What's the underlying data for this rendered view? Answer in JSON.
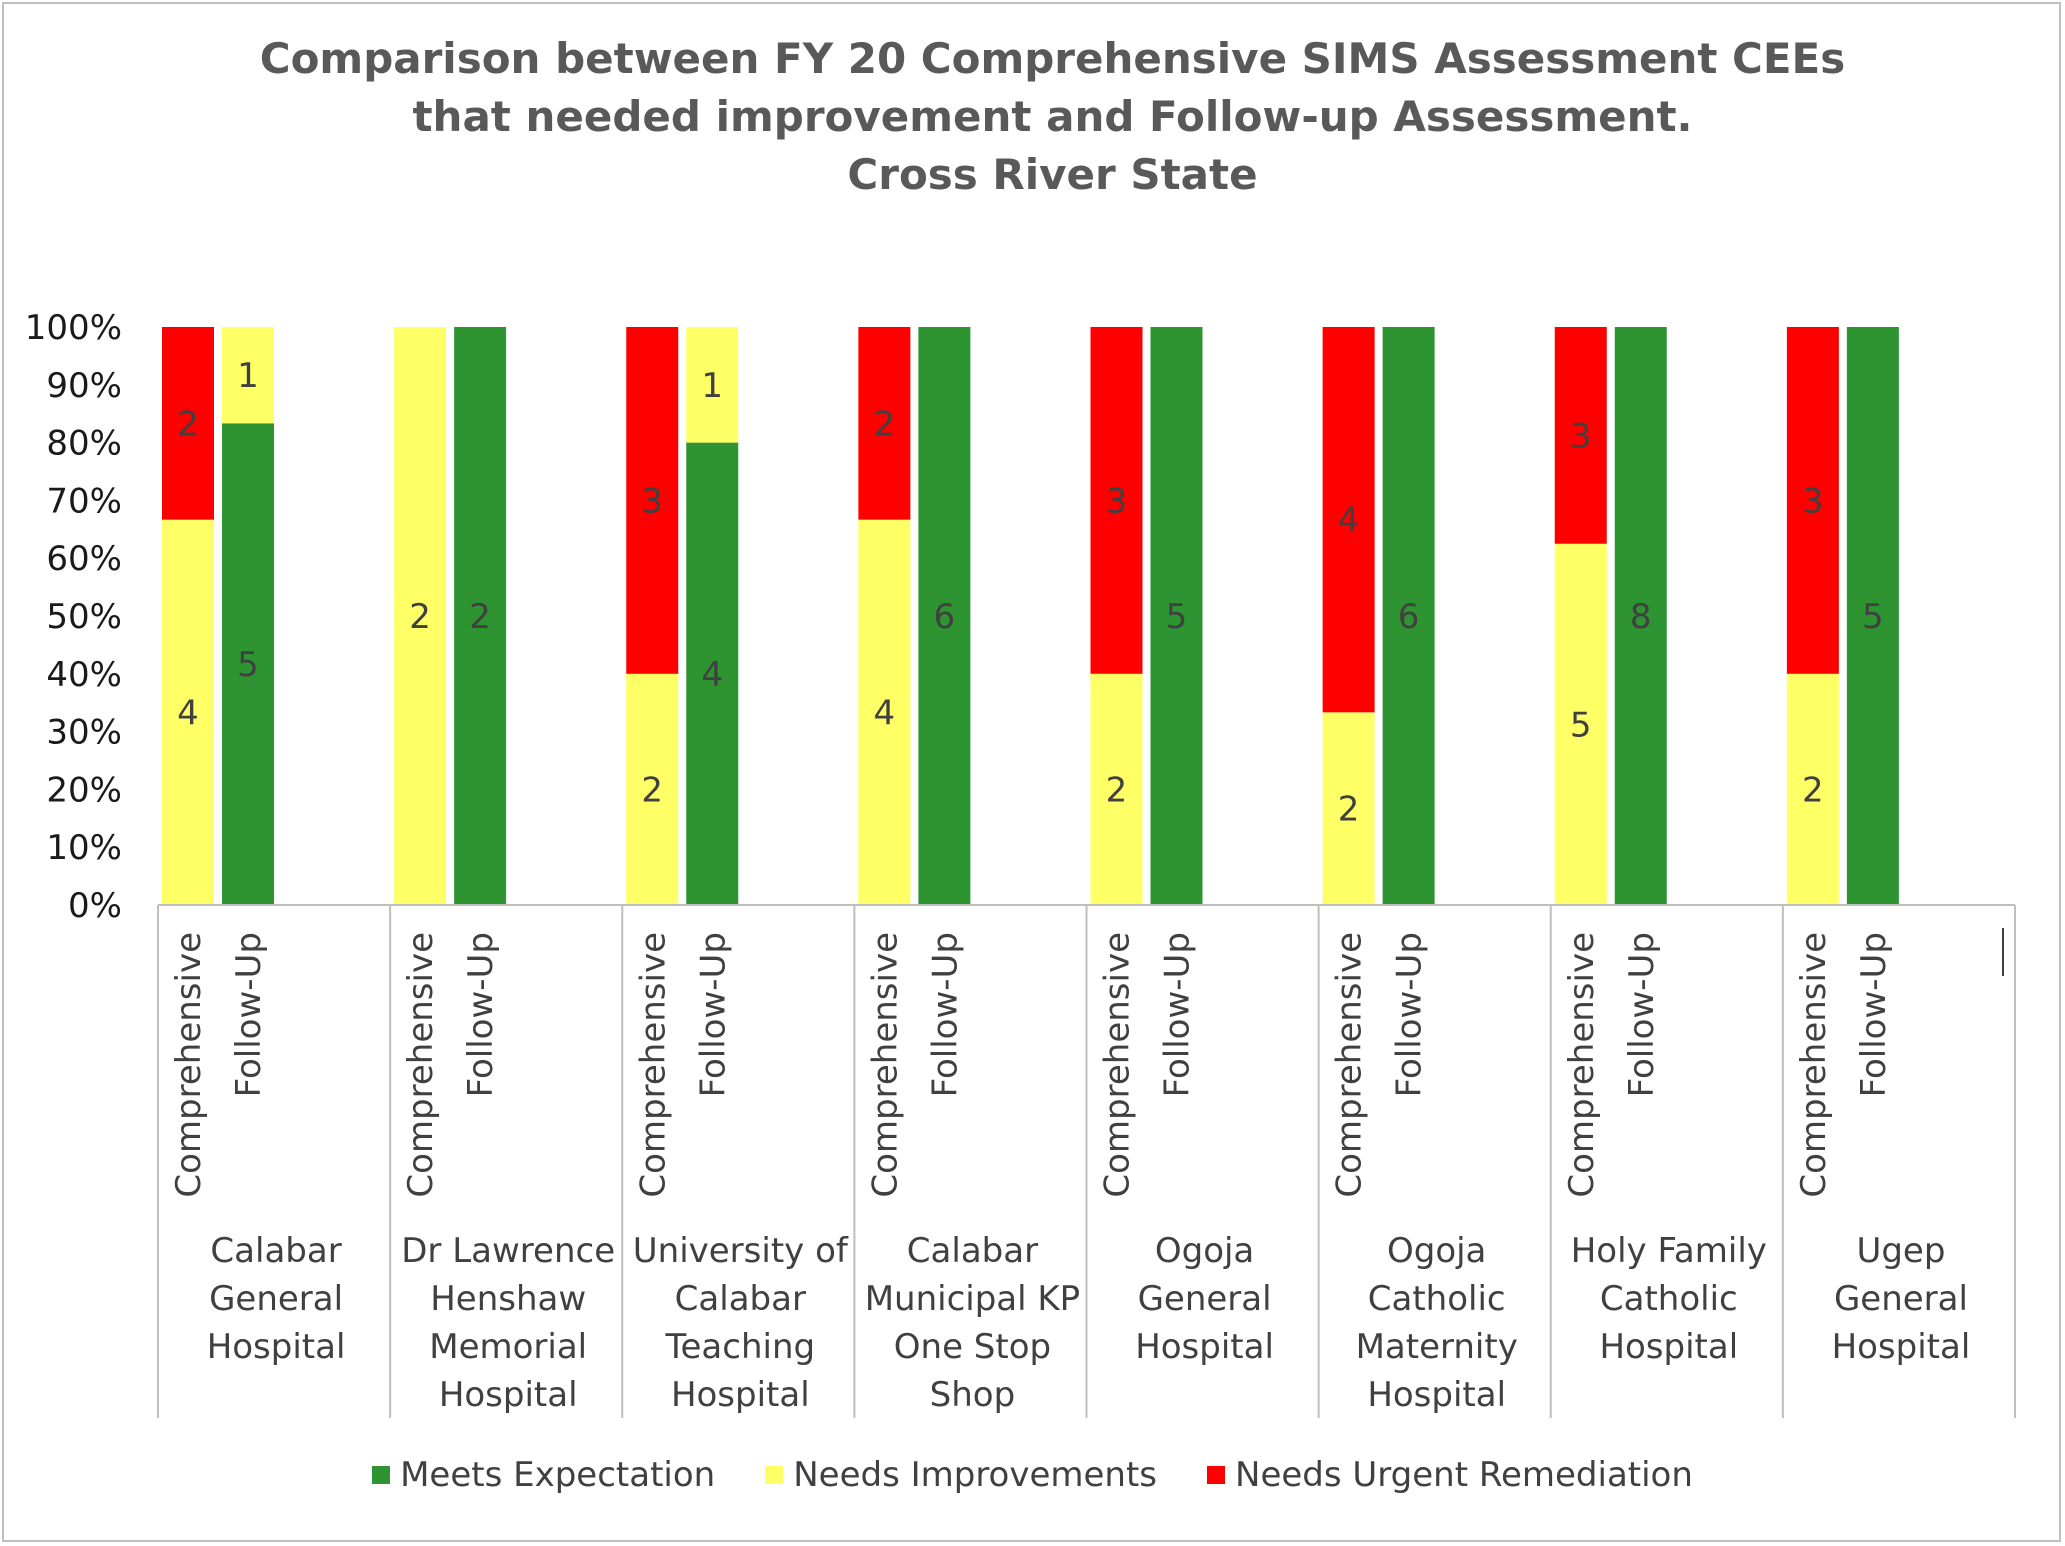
{
  "title_lines": [
    "Comparison between FY 20 Comprehensive SIMS Assessment CEEs",
    "that needed improvement and Follow-up Assessment.",
    "Cross River State"
  ],
  "colors": {
    "meets": "#2e9431",
    "improve": "#ffff66",
    "urgent": "#ff0000",
    "axis": "#bfbfbf",
    "text": "#404040"
  },
  "chart_data": {
    "type": "bar",
    "stacked": "percent",
    "title": "Comparison between FY 20 Comprehensive SIMS Assessment CEEs that needed improvement and Follow-up Assessment. Cross River State",
    "ylim": [
      0,
      100
    ],
    "yticks": [
      "0%",
      "10%",
      "20%",
      "30%",
      "40%",
      "50%",
      "60%",
      "70%",
      "80%",
      "90%",
      "100%"
    ],
    "legend_position": "bottom",
    "series_names": [
      "Meets Expectation",
      "Needs Improvements",
      "Needs Urgent Remediation"
    ],
    "groups": [
      {
        "label": [
          "Calabar",
          "General",
          "Hospital"
        ],
        "bars": [
          {
            "label": "Comprehensive",
            "meets": 0,
            "improve": 4,
            "urgent": 2
          },
          {
            "label": "Follow-Up",
            "meets": 5,
            "improve": 1,
            "urgent": 0
          }
        ]
      },
      {
        "label": [
          "Dr Lawrence",
          "Henshaw",
          "Memorial",
          "Hospital"
        ],
        "bars": [
          {
            "label": "Comprehensive",
            "meets": 0,
            "improve": 2,
            "urgent": 0
          },
          {
            "label": "Follow-Up",
            "meets": 2,
            "improve": 0,
            "urgent": 0
          }
        ]
      },
      {
        "label": [
          "University of",
          "Calabar",
          "Teaching",
          "Hospital"
        ],
        "bars": [
          {
            "label": "Comprehensive",
            "meets": 0,
            "improve": 2,
            "urgent": 3
          },
          {
            "label": "Follow-Up",
            "meets": 4,
            "improve": 1,
            "urgent": 0
          }
        ]
      },
      {
        "label": [
          "Calabar",
          "Municipal KP",
          "One Stop",
          "Shop"
        ],
        "bars": [
          {
            "label": "Comprehensive",
            "meets": 0,
            "improve": 4,
            "urgent": 2
          },
          {
            "label": "Follow-Up",
            "meets": 6,
            "improve": 0,
            "urgent": 0
          }
        ]
      },
      {
        "label": [
          "Ogoja",
          "General",
          "Hospital"
        ],
        "bars": [
          {
            "label": "Comprehensive",
            "meets": 0,
            "improve": 2,
            "urgent": 3
          },
          {
            "label": "Follow-Up",
            "meets": 5,
            "improve": 0,
            "urgent": 0
          }
        ]
      },
      {
        "label": [
          "Ogoja",
          "Catholic",
          "Maternity",
          "Hospital"
        ],
        "bars": [
          {
            "label": "Comprehensive",
            "meets": 0,
            "improve": 2,
            "urgent": 4
          },
          {
            "label": "Follow-Up",
            "meets": 6,
            "improve": 0,
            "urgent": 0
          }
        ]
      },
      {
        "label": [
          "Holy Family",
          "Catholic",
          "Hospital"
        ],
        "bars": [
          {
            "label": "Comprehensive",
            "meets": 0,
            "improve": 5,
            "urgent": 3
          },
          {
            "label": "Follow-Up",
            "meets": 8,
            "improve": 0,
            "urgent": 0
          }
        ]
      },
      {
        "label": [
          "Ugep",
          "General",
          "Hospital"
        ],
        "bars": [
          {
            "label": "Comprehensive",
            "meets": 0,
            "improve": 2,
            "urgent": 3
          },
          {
            "label": "Follow-Up",
            "meets": 5,
            "improve": 0,
            "urgent": 0
          }
        ]
      }
    ]
  },
  "legend": [
    {
      "label": "Meets Expectation",
      "color_key": "meets"
    },
    {
      "label": "Needs Improvements",
      "color_key": "improve"
    },
    {
      "label": "Needs Urgent Remediation",
      "color_key": "urgent"
    }
  ]
}
